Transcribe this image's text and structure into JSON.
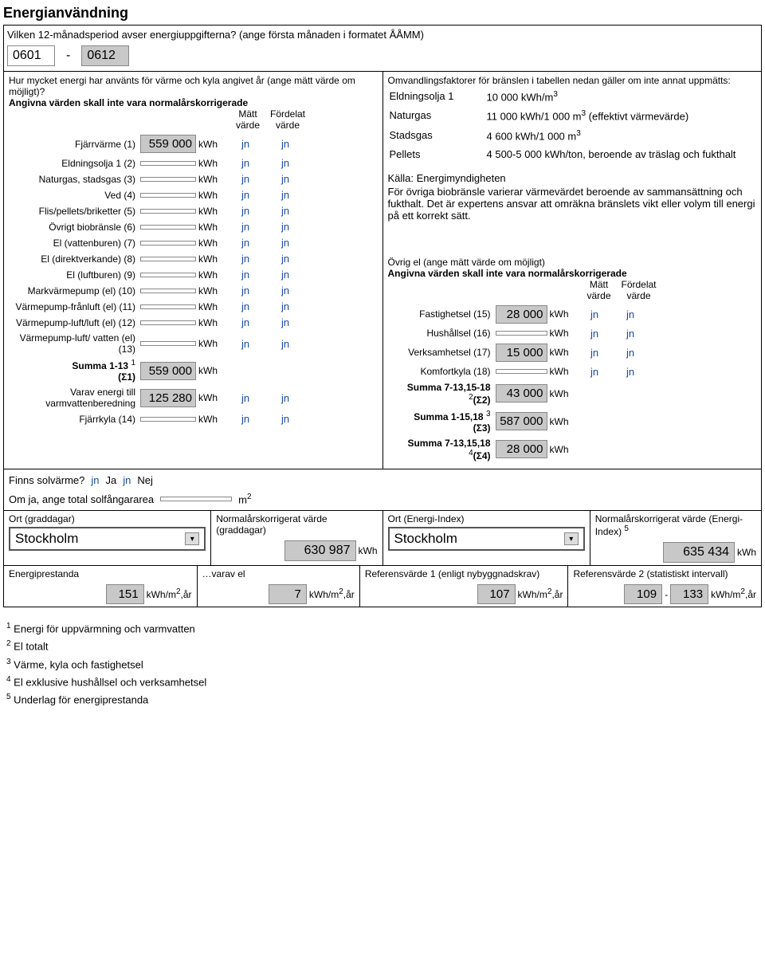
{
  "title": "Energianvändning",
  "period_q": "Vilken 12-månadsperiod avser energiuppgifterna? (ange första månaden i formatet ÅÅMM)",
  "period_from": "0601",
  "period_to": "0612",
  "left_intro1": "Hur mycket energi har använts för värme och kyla angivet år (ange mätt värde om möjligt)?",
  "left_intro2": "Angivna värden skall inte vara normalårskorrigerade",
  "col_matt": "Mätt värde",
  "col_ford": "Fördelat värde",
  "rows": [
    {
      "lbl": "Fjärrvärme (1)",
      "val": "559 000",
      "gray": true
    },
    {
      "lbl": "Eldningsolja 1 (2)",
      "val": ""
    },
    {
      "lbl": "Naturgas, stadsgas (3)",
      "val": ""
    },
    {
      "lbl": "Ved (4)",
      "val": ""
    },
    {
      "lbl": "Flis/pellets/briketter (5)",
      "val": ""
    },
    {
      "lbl": "Övrigt biobränsle (6)",
      "val": ""
    },
    {
      "lbl": "El (vattenburen) (7)",
      "val": ""
    },
    {
      "lbl": "El (direktverkande) (8)",
      "val": ""
    },
    {
      "lbl": "El (luftburen) (9)",
      "val": ""
    },
    {
      "lbl": "Markvärmepump (el) (10)",
      "val": ""
    },
    {
      "lbl": "Värmepump-frånluft (el) (11)",
      "val": ""
    },
    {
      "lbl": "Värmepump-luft/luft (el) (12)",
      "val": ""
    },
    {
      "lbl": "Värmepump-luft/ vatten (el) (13)",
      "val": ""
    }
  ],
  "sum1_lbl": "Summa 1-13 ",
  "sum1_sigma": "(Σ1)",
  "sum1_val": "559 000",
  "varav_lbl": "Varav energi till varmvattenberedning",
  "varav_val": "125 280",
  "fjkyla_lbl": "Fjärrkyla (14)",
  "fjkyla_val": "",
  "right_intro": "Omvandlingsfaktorer för bränslen i tabellen nedan gäller om inte annat uppmätts:",
  "conv": [
    {
      "k": "Eldningsolja 1",
      "v": "10 000 kWh/m",
      "sup": "3"
    },
    {
      "k": "Naturgas",
      "v": "11 000 kWh/1 000 m",
      "sup": "3",
      "tail": " (effektivt värmevärde)"
    },
    {
      "k": "Stadsgas",
      "v": "4 600 kWh/1 000 m",
      "sup": "3"
    },
    {
      "k": "Pellets",
      "v": "4 500-5 000 kWh/ton, beroende av träslag och fukthalt"
    }
  ],
  "kalla": "Källa: Energimyndigheten",
  "kalla2": "För övriga biobränsle varierar värmevärdet beroende av sammansättning och fukthalt. Det är expertens ansvar att omräkna bränslets vikt eller volym till energi på ett korrekt sätt.",
  "ovrig_hdr1": "Övrig el (ange mätt värde om möjligt)",
  "ovrig_hdr2": "Angivna värden skall inte vara normalårskorrigerade",
  "rrows": [
    {
      "lbl": "Fastighetsel (15)",
      "val": "28 000",
      "gray": true
    },
    {
      "lbl": "Hushållsel (16)",
      "val": ""
    },
    {
      "lbl": "Verksamhetsel (17)",
      "val": "15 000",
      "gray": true
    },
    {
      "lbl": "Komfortkyla (18)",
      "val": ""
    }
  ],
  "sum2_lbl": "Summa 7-13,15-18 ",
  "sum2_sup": "2",
  "sum2_sigma": "(Σ2)",
  "sum2_val": "43 000",
  "sum3_lbl": "Summa 1-15,18 ",
  "sum3_sup": "3",
  "sum3_sigma": "(Σ3)",
  "sum3_val": "587 000",
  "sum4_lbl": "Summa 7-13,15,18 ",
  "sum4_sup": "4",
  "sum4_sigma": "(Σ4)",
  "sum4_val": "28 000",
  "solv_q": "Finns solvärme?",
  "solv_ja": "Ja",
  "solv_nej": "Nej",
  "area_q": "Om ja, ange total solfångararea",
  "area_unit": "m",
  "g1_h": "Ort (graddagar)",
  "g1_sel": "Stockholm",
  "g2_h": "Normalårskorrigerat värde (graddagar)",
  "g2_val": "630 987",
  "g2_u": "kWh",
  "g3_h": "Ort (Energi-Index)",
  "g3_sel": "Stockholm",
  "g4_h": "Normalårskorrigerat värde (Energi-Index) ",
  "g4_sup": "5",
  "g4_val": "635 434",
  "g4_u": "kWh",
  "p1_h": "Energiprestanda",
  "p1_v": "151",
  "p2_h": "…varav el",
  "p2_v": "7",
  "p3_h": "Referensvärde 1 (enligt nybyggnadskrav)",
  "p3_v": "107",
  "p4_h": "Referensvärde 2 (statistiskt intervall)",
  "p4_v1": "109",
  "p4_v2": "133",
  "pu": "kWh/m",
  "pu_sup": "2",
  "pu_tail": ",år",
  "foot": [
    " Energi för uppvärmning och varmvatten",
    " El totalt",
    " Värme, kyla och fastighetsel",
    " El exklusive hushållsel och verksamhetsel",
    " Underlag för energiprestanda"
  ],
  "rad_glyph": "jn",
  "kwh": "kWh"
}
